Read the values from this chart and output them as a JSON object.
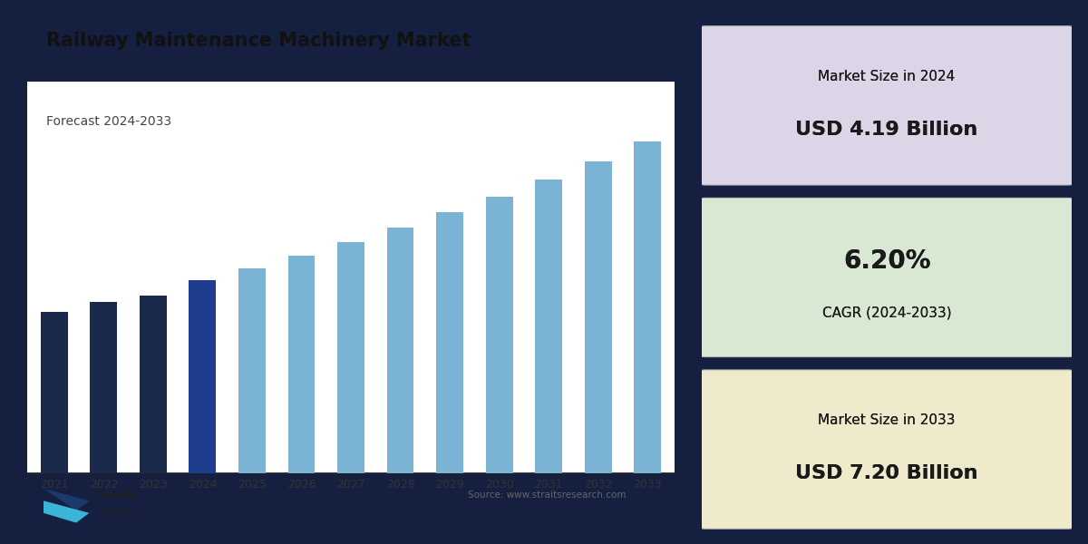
{
  "title": "Railway Maintenance Machinery Market",
  "subtitle": "Forecast 2024-2033",
  "years": [
    2021,
    2022,
    2023,
    2024,
    2025,
    2026,
    2027,
    2028,
    2029,
    2030,
    2031,
    2032,
    2033
  ],
  "values": [
    3.5,
    3.72,
    3.85,
    4.19,
    4.45,
    4.73,
    5.02,
    5.33,
    5.66,
    6.01,
    6.38,
    6.77,
    7.2
  ],
  "bar_color_hist": "#1b2a4a",
  "bar_color_2024": "#1e3d8f",
  "bar_color_forecast": "#7ab3d4",
  "background_color": "#152040",
  "chart_bg": "#ffffff",
  "box1_bg": "#dcd5e8",
  "box2_bg": "#d8e8d2",
  "box3_bg": "#f0eacc",
  "box1_label": "Market Size in 2024",
  "box1_value": "USD 4.19 Billion",
  "box2_value": "6.20%",
  "box2_label": "CAGR (2024-2033)",
  "box3_label": "Market Size in 2033",
  "box3_value": "USD 7.20 Billion",
  "source_text": "Source: www.straitsresearch.com",
  "ylim_max": 8.5
}
